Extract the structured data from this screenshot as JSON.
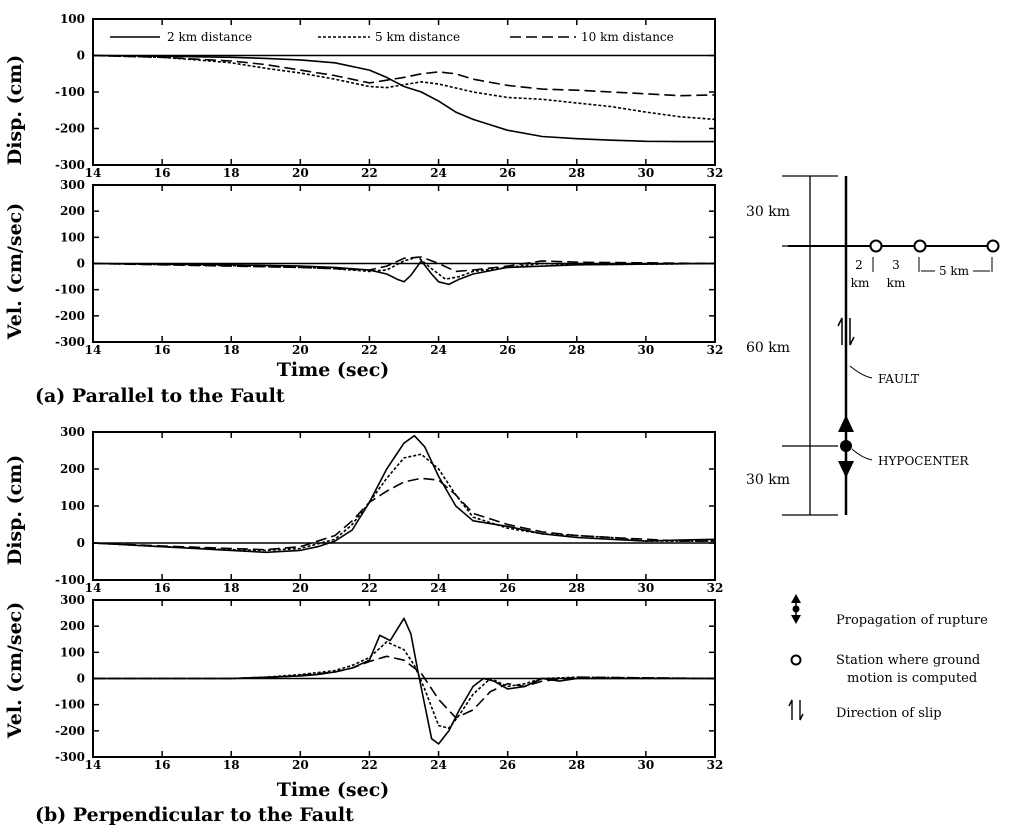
{
  "figure": {
    "time_label": "Time (sec)",
    "caption_a": "(a) Parallel to the Fault",
    "caption_b": "(b) Perpendicular to the Fault",
    "disp_label": "Disp. (cm)",
    "vel_label": "Vel. (cm/sec)"
  },
  "legend": {
    "items": [
      {
        "label": "2 km distance",
        "dash": "solid"
      },
      {
        "label": "5 km distance",
        "dash": "dotted"
      },
      {
        "label": "10 km distance",
        "dash": "dashed"
      }
    ]
  },
  "diagram": {
    "dist_top": "30 km",
    "dist_mid": "60 km",
    "dist_bot": "30 km",
    "seg_2km": "2",
    "seg_3km": "3",
    "seg_5km": "5 km",
    "km_unit": "km",
    "fault_label": "FAULT",
    "hypocenter_label": "HYPOCENTER",
    "key_propagation": "Propagation of rupture",
    "key_station_line1": "Station where ground",
    "key_station_line2": "motion is computed",
    "key_slip": "Direction of slip"
  },
  "chart_data": [
    {
      "type": "line",
      "panel": "a-displacement",
      "ylabel": "Disp. (cm)",
      "xlim": [
        14,
        32
      ],
      "ylim": [
        -300,
        100
      ],
      "xticks": [
        14,
        16,
        18,
        20,
        22,
        24,
        26,
        28,
        30,
        32
      ],
      "yticks": [
        -300,
        -200,
        -100,
        0,
        100
      ],
      "legend": "top",
      "series": [
        {
          "name": "2 km distance",
          "dash": "solid",
          "x": [
            14,
            16,
            18,
            19,
            20,
            21,
            22,
            22.5,
            23,
            23.5,
            24,
            24.5,
            25,
            26,
            27,
            28,
            29,
            30,
            31,
            32
          ],
          "y": [
            0,
            -2,
            -5,
            -8,
            -12,
            -20,
            -40,
            -60,
            -85,
            -100,
            -125,
            -155,
            -175,
            -205,
            -222,
            -228,
            -232,
            -235,
            -236,
            -236
          ]
        },
        {
          "name": "5 km distance",
          "dash": "dotted",
          "x": [
            14,
            16,
            17,
            18,
            19,
            20,
            21,
            22,
            22.5,
            23,
            23.5,
            24,
            25,
            26,
            27,
            28,
            29,
            30,
            31,
            32
          ],
          "y": [
            0,
            -5,
            -12,
            -20,
            -35,
            -48,
            -65,
            -85,
            -88,
            -80,
            -72,
            -78,
            -100,
            -115,
            -120,
            -130,
            -140,
            -155,
            -168,
            -175
          ]
        },
        {
          "name": "10 km distance",
          "dash": "dashed",
          "x": [
            14,
            16,
            17,
            18,
            19,
            20,
            21,
            22,
            23,
            23.5,
            24,
            24.5,
            25,
            26,
            27,
            28,
            29,
            30,
            31,
            32
          ],
          "y": [
            0,
            -5,
            -10,
            -15,
            -25,
            -40,
            -55,
            -75,
            -60,
            -50,
            -45,
            -50,
            -65,
            -82,
            -92,
            -95,
            -100,
            -105,
            -110,
            -108
          ]
        }
      ]
    },
    {
      "type": "line",
      "panel": "a-velocity",
      "ylabel": "Vel. (cm/sec)",
      "xlabel": "Time (sec)",
      "xlim": [
        14,
        32
      ],
      "ylim": [
        -300,
        300
      ],
      "xticks": [
        14,
        16,
        18,
        20,
        22,
        24,
        26,
        28,
        30,
        32
      ],
      "yticks": [
        -300,
        -200,
        -100,
        0,
        100,
        200,
        300
      ],
      "series": [
        {
          "name": "2 km distance",
          "dash": "solid",
          "x": [
            14,
            18,
            20,
            21,
            22,
            22.5,
            22.8,
            23,
            23.2,
            23.5,
            23.8,
            24,
            24.3,
            24.6,
            25,
            26,
            28,
            32
          ],
          "y": [
            0,
            -5,
            -10,
            -15,
            -25,
            -40,
            -60,
            -70,
            -45,
            10,
            -40,
            -70,
            -80,
            -60,
            -40,
            -15,
            -5,
            0
          ]
        },
        {
          "name": "5 km distance",
          "dash": "dotted",
          "x": [
            14,
            18,
            20,
            21,
            22,
            22.5,
            23,
            23.4,
            23.8,
            24.2,
            24.6,
            25,
            26,
            27,
            28,
            32
          ],
          "y": [
            0,
            -8,
            -15,
            -20,
            -30,
            -25,
            10,
            25,
            -20,
            -60,
            -50,
            -30,
            -15,
            0,
            -5,
            0
          ]
        },
        {
          "name": "10 km distance",
          "dash": "dashed",
          "x": [
            14,
            18,
            20,
            21,
            22,
            22.5,
            23,
            23.5,
            24,
            24.5,
            25,
            26,
            27,
            28,
            32
          ],
          "y": [
            0,
            -10,
            -15,
            -20,
            -25,
            -10,
            20,
            25,
            0,
            -30,
            -25,
            -10,
            10,
            5,
            0
          ]
        }
      ]
    },
    {
      "type": "line",
      "panel": "b-displacement",
      "ylabel": "Disp. (cm)",
      "xlim": [
        14,
        32
      ],
      "ylim": [
        -100,
        300
      ],
      "xticks": [
        14,
        16,
        18,
        20,
        22,
        24,
        26,
        28,
        30,
        32
      ],
      "yticks": [
        -100,
        0,
        100,
        200,
        300
      ],
      "series": [
        {
          "name": "2 km distance",
          "dash": "solid",
          "x": [
            14,
            16,
            18,
            19,
            20,
            20.5,
            21,
            21.5,
            22,
            22.5,
            23,
            23.3,
            23.6,
            24,
            24.5,
            25,
            26,
            27,
            28,
            29,
            30,
            31,
            32
          ],
          "y": [
            0,
            -10,
            -20,
            -25,
            -20,
            -10,
            5,
            35,
            110,
            200,
            270,
            290,
            260,
            180,
            100,
            60,
            45,
            25,
            15,
            10,
            5,
            8,
            10
          ]
        },
        {
          "name": "5 km distance",
          "dash": "dotted",
          "x": [
            14,
            16,
            18,
            19,
            20,
            21,
            21.5,
            22,
            22.5,
            23,
            23.5,
            24,
            24.5,
            25,
            26,
            27,
            28,
            29,
            30,
            31,
            32
          ],
          "y": [
            0,
            -10,
            -18,
            -20,
            -15,
            10,
            50,
            110,
            175,
            230,
            240,
            200,
            130,
            70,
            40,
            25,
            20,
            15,
            5,
            5,
            5
          ]
        },
        {
          "name": "10 km distance",
          "dash": "dashed",
          "x": [
            14,
            16,
            18,
            19,
            20,
            21,
            21.5,
            22,
            22.5,
            23,
            23.5,
            24,
            24.5,
            25,
            26,
            27,
            28,
            29,
            30,
            31,
            32
          ],
          "y": [
            0,
            -8,
            -15,
            -18,
            -10,
            20,
            60,
            110,
            140,
            165,
            175,
            170,
            130,
            80,
            50,
            30,
            20,
            15,
            10,
            5,
            5
          ]
        }
      ]
    },
    {
      "type": "line",
      "panel": "b-velocity",
      "ylabel": "Vel. (cm/sec)",
      "xlabel": "Time (sec)",
      "xlim": [
        14,
        32
      ],
      "ylim": [
        -300,
        300
      ],
      "xticks": [
        14,
        16,
        18,
        20,
        22,
        24,
        26,
        28,
        30,
        32
      ],
      "yticks": [
        -300,
        -200,
        -100,
        0,
        100,
        200,
        300
      ],
      "series": [
        {
          "name": "2 km distance",
          "dash": "solid",
          "x": [
            14,
            18,
            19,
            20,
            20.5,
            21,
            21.5,
            22,
            22.3,
            22.6,
            23,
            23.2,
            23.4,
            23.6,
            23.8,
            24,
            24.3,
            24.6,
            25,
            25.3,
            25.6,
            26,
            26.5,
            27,
            27.5,
            28,
            29,
            32
          ],
          "y": [
            0,
            0,
            5,
            10,
            15,
            25,
            40,
            70,
            165,
            145,
            230,
            170,
            30,
            -100,
            -230,
            -250,
            -200,
            -120,
            -30,
            0,
            -10,
            -40,
            -30,
            0,
            -10,
            0,
            0,
            0
          ]
        },
        {
          "name": "5 km distance",
          "dash": "dotted",
          "x": [
            14,
            18,
            19,
            20,
            21,
            21.5,
            22,
            22.5,
            23,
            23.3,
            23.6,
            24,
            24.3,
            24.6,
            25,
            25.5,
            26,
            26.5,
            27,
            28,
            32
          ],
          "y": [
            0,
            0,
            5,
            15,
            30,
            50,
            80,
            140,
            110,
            50,
            -40,
            -180,
            -190,
            -140,
            -60,
            0,
            -30,
            -20,
            0,
            5,
            0
          ]
        },
        {
          "name": "10 km distance",
          "dash": "dashed",
          "x": [
            14,
            18,
            19,
            20,
            21,
            21.5,
            22,
            22.5,
            23,
            23.5,
            24,
            24.5,
            25,
            25.5,
            26,
            26.5,
            27,
            28,
            32
          ],
          "y": [
            0,
            0,
            3,
            12,
            25,
            40,
            65,
            85,
            70,
            20,
            -80,
            -150,
            -120,
            -50,
            -20,
            -30,
            -10,
            5,
            0
          ]
        }
      ]
    }
  ]
}
